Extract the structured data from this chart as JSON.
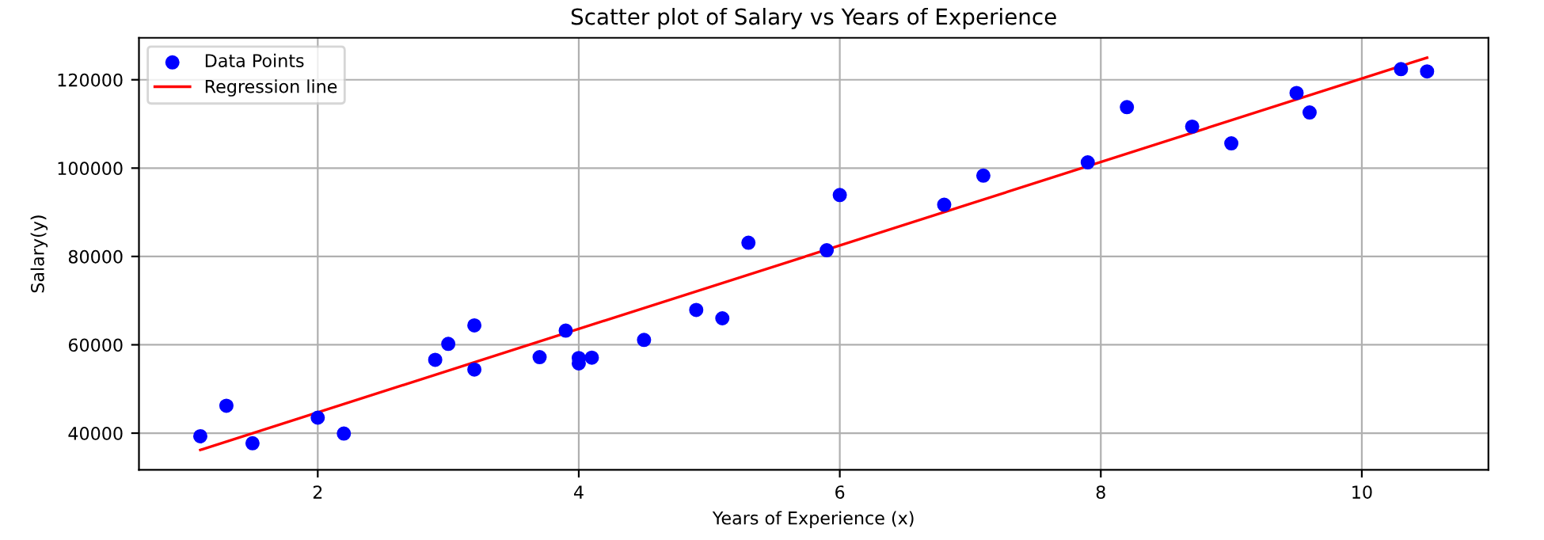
{
  "chart_data": {
    "type": "scatter",
    "title": "Scatter plot of Salary vs Years of Experience",
    "xlabel": "Years of Experience (x)",
    "ylabel": "Salary(y)",
    "xlim": [
      0.63,
      10.97
    ],
    "xticks": [
      2,
      4,
      6,
      8,
      10
    ],
    "ylim": [
      31700,
      129500
    ],
    "yticks": [
      40000,
      60000,
      80000,
      100000,
      120000
    ],
    "grid": true,
    "legend": "top left",
    "series": [
      {
        "name": "Data Points",
        "color": "#0000ff",
        "marker": "circle",
        "x": [
          1.1,
          1.3,
          1.5,
          2.0,
          2.2,
          2.9,
          3.0,
          3.2,
          3.2,
          3.7,
          3.9,
          4.0,
          4.0,
          4.1,
          4.5,
          4.9,
          5.1,
          5.3,
          5.9,
          6.0,
          6.8,
          7.1,
          7.9,
          8.2,
          8.7,
          9.0,
          9.5,
          9.6,
          10.3,
          10.5
        ],
        "values": [
          39300,
          46200,
          37700,
          43500,
          39900,
          56600,
          60200,
          54400,
          64400,
          57200,
          63200,
          55800,
          57000,
          57100,
          61100,
          67900,
          66000,
          83100,
          81400,
          93900,
          91700,
          98300,
          101300,
          113800,
          109400,
          105600,
          117000,
          112600,
          122400,
          121900
        ]
      },
      {
        "name": "Regression line",
        "type": "line",
        "color": "#ff0000",
        "marker": "none",
        "line_style": "solid",
        "x": [
          1.1,
          10.5
        ],
        "values": [
          36200,
          125000
        ]
      }
    ]
  }
}
